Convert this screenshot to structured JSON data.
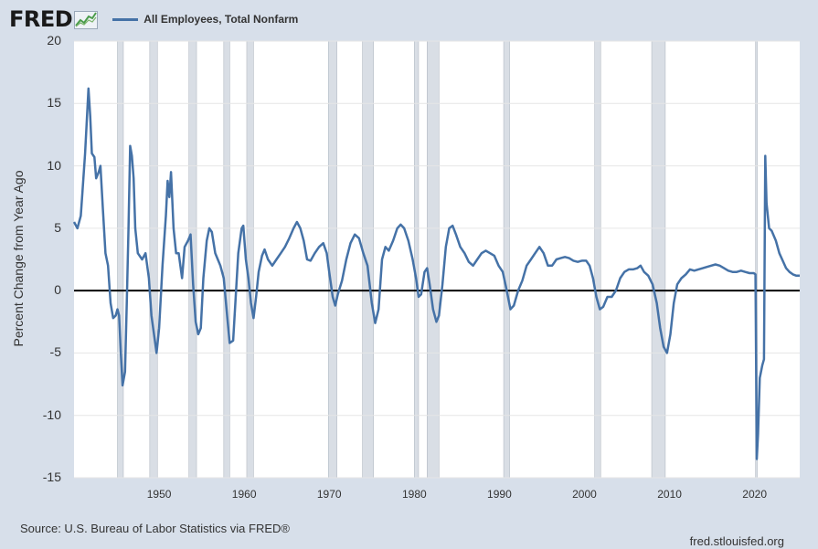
{
  "header": {
    "logo_text": "FRED",
    "series_label": "All Employees, Total Nonfarm",
    "series_color": "#4572a7"
  },
  "footer": {
    "source": "Source: U.S. Bureau of Labor Statistics via FRED®",
    "site": "fred.stlouisfed.org"
  },
  "chart_data": {
    "type": "line",
    "title": "",
    "xlabel": "",
    "ylabel": "Percent Change from Year Ago",
    "xlim": [
      1940,
      2025.3
    ],
    "ylim": [
      -15,
      20
    ],
    "yticks": [
      -15,
      -10,
      -5,
      0,
      5,
      10,
      15,
      20
    ],
    "ytick_labels": [
      "-15",
      "-10",
      "-5",
      "0",
      "5",
      "10",
      "15",
      "20"
    ],
    "xticks": [
      1950,
      1960,
      1970,
      1980,
      1990,
      2000,
      2010,
      2020
    ],
    "xtick_labels": [
      "1950",
      "1960",
      "1970",
      "1980",
      "1990",
      "2000",
      "2010",
      "2020"
    ],
    "grid": true,
    "zero_line": true,
    "recessions": [
      [
        1945.1,
        1945.8
      ],
      [
        1948.9,
        1949.8
      ],
      [
        1953.5,
        1954.4
      ],
      [
        1957.6,
        1958.3
      ],
      [
        1960.3,
        1961.1
      ],
      [
        1969.9,
        1970.9
      ],
      [
        1973.9,
        1975.2
      ],
      [
        1980.0,
        1980.5
      ],
      [
        1981.5,
        1982.9
      ],
      [
        1990.5,
        1991.2
      ],
      [
        2001.2,
        2001.9
      ],
      [
        2007.9,
        2009.5
      ],
      [
        2020.1,
        2020.3
      ]
    ],
    "series": [
      {
        "name": "All Employees, Total Nonfarm",
        "color": "#4572a7",
        "points": [
          [
            1940.0,
            5.5
          ],
          [
            1940.4,
            5.0
          ],
          [
            1940.8,
            6.0
          ],
          [
            1941.0,
            8.0
          ],
          [
            1941.3,
            11.0
          ],
          [
            1941.7,
            16.2
          ],
          [
            1941.9,
            14.0
          ],
          [
            1942.1,
            11.0
          ],
          [
            1942.4,
            10.7
          ],
          [
            1942.6,
            9.0
          ],
          [
            1942.9,
            9.5
          ],
          [
            1943.1,
            10.0
          ],
          [
            1943.4,
            6.5
          ],
          [
            1943.7,
            3.0
          ],
          [
            1944.0,
            2.0
          ],
          [
            1944.3,
            -1.0
          ],
          [
            1944.6,
            -2.2
          ],
          [
            1944.9,
            -2.0
          ],
          [
            1945.1,
            -1.5
          ],
          [
            1945.3,
            -2.0
          ],
          [
            1945.5,
            -5.0
          ],
          [
            1945.7,
            -7.6
          ],
          [
            1946.0,
            -6.5
          ],
          [
            1946.2,
            -1.0
          ],
          [
            1946.4,
            5.0
          ],
          [
            1946.6,
            11.6
          ],
          [
            1946.8,
            10.8
          ],
          [
            1947.0,
            9.0
          ],
          [
            1947.2,
            5.0
          ],
          [
            1947.5,
            3.0
          ],
          [
            1948.0,
            2.5
          ],
          [
            1948.4,
            3.0
          ],
          [
            1948.8,
            1.0
          ],
          [
            1949.1,
            -2.0
          ],
          [
            1949.4,
            -3.5
          ],
          [
            1949.7,
            -5.0
          ],
          [
            1950.0,
            -3.0
          ],
          [
            1950.4,
            2.0
          ],
          [
            1950.8,
            6.0
          ],
          [
            1951.0,
            8.8
          ],
          [
            1951.2,
            7.5
          ],
          [
            1951.4,
            9.5
          ],
          [
            1951.7,
            5.0
          ],
          [
            1952.0,
            3.0
          ],
          [
            1952.3,
            3.0
          ],
          [
            1952.7,
            1.0
          ],
          [
            1953.0,
            3.5
          ],
          [
            1953.4,
            4.0
          ],
          [
            1953.7,
            4.5
          ],
          [
            1954.0,
            0.5
          ],
          [
            1954.3,
            -2.5
          ],
          [
            1954.6,
            -3.5
          ],
          [
            1954.9,
            -3.0
          ],
          [
            1955.2,
            1.0
          ],
          [
            1955.6,
            4.0
          ],
          [
            1955.9,
            5.0
          ],
          [
            1956.2,
            4.7
          ],
          [
            1956.6,
            3.0
          ],
          [
            1956.9,
            2.5
          ],
          [
            1957.2,
            2.0
          ],
          [
            1957.6,
            1.0
          ],
          [
            1958.0,
            -2.0
          ],
          [
            1958.3,
            -4.2
          ],
          [
            1958.7,
            -4.0
          ],
          [
            1959.0,
            -0.5
          ],
          [
            1959.3,
            3.0
          ],
          [
            1959.7,
            5.0
          ],
          [
            1959.9,
            5.2
          ],
          [
            1960.2,
            2.5
          ],
          [
            1960.5,
            1.0
          ],
          [
            1960.8,
            -1.0
          ],
          [
            1961.1,
            -2.2
          ],
          [
            1961.4,
            -0.5
          ],
          [
            1961.7,
            1.5
          ],
          [
            1962.1,
            2.8
          ],
          [
            1962.4,
            3.3
          ],
          [
            1962.8,
            2.5
          ],
          [
            1963.3,
            2.0
          ],
          [
            1963.8,
            2.5
          ],
          [
            1964.3,
            3.0
          ],
          [
            1964.8,
            3.5
          ],
          [
            1965.3,
            4.2
          ],
          [
            1965.8,
            5.0
          ],
          [
            1966.2,
            5.5
          ],
          [
            1966.6,
            5.0
          ],
          [
            1967.0,
            4.0
          ],
          [
            1967.4,
            2.5
          ],
          [
            1967.8,
            2.4
          ],
          [
            1968.3,
            3.0
          ],
          [
            1968.8,
            3.5
          ],
          [
            1969.3,
            3.8
          ],
          [
            1969.7,
            3.0
          ],
          [
            1970.0,
            1.5
          ],
          [
            1970.4,
            -0.5
          ],
          [
            1970.7,
            -1.2
          ],
          [
            1971.0,
            -0.3
          ],
          [
            1971.5,
            0.8
          ],
          [
            1972.0,
            2.5
          ],
          [
            1972.5,
            3.8
          ],
          [
            1973.0,
            4.5
          ],
          [
            1973.5,
            4.2
          ],
          [
            1974.0,
            3.0
          ],
          [
            1974.5,
            2.0
          ],
          [
            1975.0,
            -1.0
          ],
          [
            1975.4,
            -2.6
          ],
          [
            1975.8,
            -1.5
          ],
          [
            1976.2,
            2.5
          ],
          [
            1976.6,
            3.5
          ],
          [
            1977.0,
            3.2
          ],
          [
            1977.5,
            4.0
          ],
          [
            1978.0,
            5.0
          ],
          [
            1978.4,
            5.3
          ],
          [
            1978.8,
            5.0
          ],
          [
            1979.3,
            4.0
          ],
          [
            1979.8,
            2.5
          ],
          [
            1980.2,
            1.0
          ],
          [
            1980.5,
            -0.5
          ],
          [
            1980.8,
            -0.3
          ],
          [
            1981.2,
            1.5
          ],
          [
            1981.5,
            1.8
          ],
          [
            1981.8,
            0.5
          ],
          [
            1982.2,
            -1.5
          ],
          [
            1982.6,
            -2.5
          ],
          [
            1982.9,
            -2.0
          ],
          [
            1983.3,
            0.5
          ],
          [
            1983.7,
            3.5
          ],
          [
            1984.1,
            5.0
          ],
          [
            1984.5,
            5.2
          ],
          [
            1984.9,
            4.5
          ],
          [
            1985.4,
            3.5
          ],
          [
            1985.9,
            3.0
          ],
          [
            1986.4,
            2.3
          ],
          [
            1986.9,
            2.0
          ],
          [
            1987.4,
            2.5
          ],
          [
            1987.9,
            3.0
          ],
          [
            1988.4,
            3.2
          ],
          [
            1988.9,
            3.0
          ],
          [
            1989.4,
            2.8
          ],
          [
            1989.9,
            2.0
          ],
          [
            1990.4,
            1.5
          ],
          [
            1990.8,
            0.2
          ],
          [
            1991.3,
            -1.5
          ],
          [
            1991.7,
            -1.2
          ],
          [
            1992.2,
            0.0
          ],
          [
            1992.7,
            0.8
          ],
          [
            1993.2,
            2.0
          ],
          [
            1993.7,
            2.5
          ],
          [
            1994.2,
            3.0
          ],
          [
            1994.7,
            3.5
          ],
          [
            1995.2,
            3.0
          ],
          [
            1995.7,
            2.0
          ],
          [
            1996.2,
            2.0
          ],
          [
            1996.7,
            2.5
          ],
          [
            1997.2,
            2.6
          ],
          [
            1997.7,
            2.7
          ],
          [
            1998.2,
            2.6
          ],
          [
            1998.7,
            2.4
          ],
          [
            1999.2,
            2.3
          ],
          [
            1999.7,
            2.4
          ],
          [
            2000.2,
            2.4
          ],
          [
            2000.6,
            2.0
          ],
          [
            2001.0,
            1.0
          ],
          [
            2001.4,
            -0.5
          ],
          [
            2001.8,
            -1.5
          ],
          [
            2002.2,
            -1.3
          ],
          [
            2002.7,
            -0.5
          ],
          [
            2003.2,
            -0.5
          ],
          [
            2003.7,
            0.0
          ],
          [
            2004.2,
            1.0
          ],
          [
            2004.7,
            1.5
          ],
          [
            2005.2,
            1.7
          ],
          [
            2005.7,
            1.7
          ],
          [
            2006.2,
            1.8
          ],
          [
            2006.6,
            2.0
          ],
          [
            2007.0,
            1.5
          ],
          [
            2007.5,
            1.2
          ],
          [
            2008.0,
            0.5
          ],
          [
            2008.5,
            -1.0
          ],
          [
            2008.9,
            -3.0
          ],
          [
            2009.3,
            -4.5
          ],
          [
            2009.7,
            -5.0
          ],
          [
            2010.1,
            -3.5
          ],
          [
            2010.5,
            -1.0
          ],
          [
            2010.9,
            0.5
          ],
          [
            2011.4,
            1.0
          ],
          [
            2011.9,
            1.3
          ],
          [
            2012.4,
            1.7
          ],
          [
            2012.9,
            1.6
          ],
          [
            2013.4,
            1.7
          ],
          [
            2013.9,
            1.8
          ],
          [
            2014.4,
            1.9
          ],
          [
            2014.9,
            2.0
          ],
          [
            2015.4,
            2.1
          ],
          [
            2015.9,
            2.0
          ],
          [
            2016.4,
            1.8
          ],
          [
            2016.9,
            1.6
          ],
          [
            2017.4,
            1.5
          ],
          [
            2017.9,
            1.5
          ],
          [
            2018.4,
            1.6
          ],
          [
            2018.9,
            1.5
          ],
          [
            2019.4,
            1.4
          ],
          [
            2019.9,
            1.4
          ],
          [
            2020.1,
            1.3
          ],
          [
            2020.25,
            -13.5
          ],
          [
            2020.4,
            -11.5
          ],
          [
            2020.6,
            -7.0
          ],
          [
            2020.9,
            -6.0
          ],
          [
            2021.1,
            -5.5
          ],
          [
            2021.25,
            10.8
          ],
          [
            2021.4,
            7.0
          ],
          [
            2021.7,
            5.0
          ],
          [
            2022.0,
            4.8
          ],
          [
            2022.5,
            4.0
          ],
          [
            2022.9,
            3.0
          ],
          [
            2023.3,
            2.4
          ],
          [
            2023.7,
            1.8
          ],
          [
            2024.1,
            1.5
          ],
          [
            2024.5,
            1.3
          ],
          [
            2024.9,
            1.2
          ],
          [
            2025.3,
            1.2
          ]
        ]
      }
    ]
  }
}
